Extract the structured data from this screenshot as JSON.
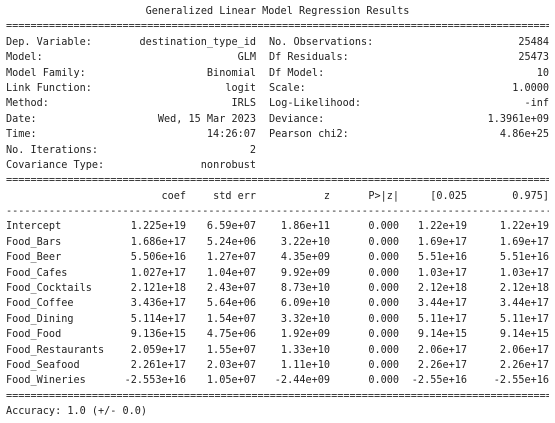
{
  "title": "Generalized Linear Model Regression Results",
  "summary_rows": [
    {
      "l1": "Dep. Variable:",
      "v1": "destination_type_id",
      "l2": "No. Observations:",
      "v2": "25484"
    },
    {
      "l1": "Model:",
      "v1": "GLM",
      "l2": "Df Residuals:",
      "v2": "25473"
    },
    {
      "l1": "Model Family:",
      "v1": "Binomial",
      "l2": "Df Model:",
      "v2": "10"
    },
    {
      "l1": "Link Function:",
      "v1": "logit",
      "l2": "Scale:",
      "v2": "1.0000"
    },
    {
      "l1": "Method:",
      "v1": "IRLS",
      "l2": "Log-Likelihood:",
      "v2": "-inf"
    },
    {
      "l1": "Date:",
      "v1": "Wed, 15 Mar 2023",
      "l2": "Deviance:",
      "v2": "1.3961e+09"
    },
    {
      "l1": "Time:",
      "v1": "14:26:07",
      "l2": "Pearson chi2:",
      "v2": "4.86e+25"
    },
    {
      "l1": "No. Iterations:",
      "v1": "2",
      "l2": "",
      "v2": ""
    },
    {
      "l1": "Covariance Type:",
      "v1": "nonrobust",
      "l2": "",
      "v2": ""
    }
  ],
  "coef_header": [
    "",
    "coef",
    "std err",
    "z",
    "P>|z|",
    "[0.025",
    "0.975]"
  ],
  "coef_rows": [
    [
      "Intercept",
      "1.225e+19",
      "6.59e+07",
      "1.86e+11",
      "0.000",
      "1.22e+19",
      "1.22e+19"
    ],
    [
      "Food_Bars",
      "1.686e+17",
      "5.24e+06",
      "3.22e+10",
      "0.000",
      "1.69e+17",
      "1.69e+17"
    ],
    [
      "Food_Beer",
      "5.506e+16",
      "1.27e+07",
      "4.35e+09",
      "0.000",
      "5.51e+16",
      "5.51e+16"
    ],
    [
      "Food_Cafes",
      "1.027e+17",
      "1.04e+07",
      "9.92e+09",
      "0.000",
      "1.03e+17",
      "1.03e+17"
    ],
    [
      "Food_Cocktails",
      "2.121e+18",
      "2.43e+07",
      "8.73e+10",
      "0.000",
      "2.12e+18",
      "2.12e+18"
    ],
    [
      "Food_Coffee",
      "3.436e+17",
      "5.64e+06",
      "6.09e+10",
      "0.000",
      "3.44e+17",
      "3.44e+17"
    ],
    [
      "Food_Dining",
      "5.114e+17",
      "1.54e+07",
      "3.32e+10",
      "0.000",
      "5.11e+17",
      "5.11e+17"
    ],
    [
      "Food_Food",
      "9.136e+15",
      "4.75e+06",
      "1.92e+09",
      "0.000",
      "9.14e+15",
      "9.14e+15"
    ],
    [
      "Food_Restaurants",
      "2.059e+17",
      "1.55e+07",
      "1.33e+10",
      "0.000",
      "2.06e+17",
      "2.06e+17"
    ],
    [
      "Food_Seafood",
      "2.261e+17",
      "2.03e+07",
      "1.11e+10",
      "0.000",
      "2.26e+17",
      "2.26e+17"
    ],
    [
      "Food_Wineries",
      "-2.553e+16",
      "1.05e+07",
      "-2.44e+09",
      "0.000",
      "-2.55e+16",
      "-2.55e+16"
    ]
  ],
  "footer": "Accuracy: 1.0 (+/- 0.0)"
}
